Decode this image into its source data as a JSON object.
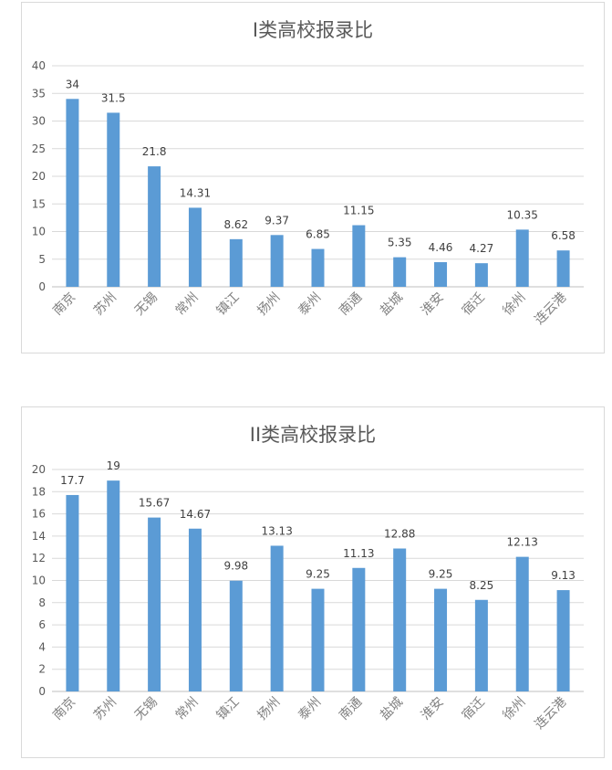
{
  "chart_data": [
    {
      "type": "bar",
      "title": "I类高校报录比",
      "categories": [
        "南京",
        "苏州",
        "无锡",
        "常州",
        "镇江",
        "扬州",
        "泰州",
        "南通",
        "盐城",
        "淮安",
        "宿迁",
        "徐州",
        "连云港"
      ],
      "values": [
        34,
        31.5,
        21.8,
        14.31,
        8.62,
        9.37,
        6.85,
        11.15,
        5.35,
        4.46,
        4.27,
        10.35,
        6.58
      ],
      "value_labels": [
        "34",
        "31.5",
        "21.8",
        "14.31",
        "8.62",
        "9.37",
        "6.85",
        "11.15",
        "5.35",
        "4.46",
        "4.27",
        "10.35",
        "6.58"
      ],
      "ylim": [
        0,
        40
      ],
      "yticks": [
        0,
        5,
        10,
        15,
        20,
        25,
        30,
        35,
        40
      ],
      "grid": true,
      "legend": "none",
      "color": "#5b9bd5"
    },
    {
      "type": "bar",
      "title": "II类高校报录比",
      "categories": [
        "南京",
        "苏州",
        "无锡",
        "常州",
        "镇江",
        "扬州",
        "泰州",
        "南通",
        "盐城",
        "淮安",
        "宿迁",
        "徐州",
        "连云港"
      ],
      "values": [
        17.7,
        19,
        15.67,
        14.67,
        9.98,
        13.13,
        9.25,
        11.13,
        12.88,
        9.25,
        8.25,
        12.13,
        9.13
      ],
      "value_labels": [
        "17.7",
        "19",
        "15.67",
        "14.67",
        "9.98",
        "13.13",
        "9.25",
        "11.13",
        "12.88",
        "9.25",
        "8.25",
        "12.13",
        "9.13"
      ],
      "ylim": [
        0,
        20
      ],
      "yticks": [
        0,
        2,
        4,
        6,
        8,
        10,
        12,
        14,
        16,
        18,
        20
      ],
      "grid": true,
      "legend": "none",
      "color": "#5b9bd5"
    }
  ]
}
